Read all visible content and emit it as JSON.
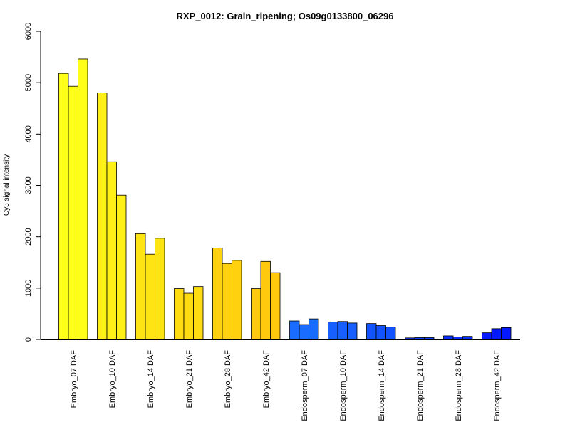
{
  "chart_data": {
    "type": "bar",
    "title": "RXP_0012: Grain_ripening; Os09g0133800_06296",
    "xlabel": "",
    "ylabel": "Cy3 signal intensity",
    "ylim": [
      0,
      6000
    ],
    "yticks": [
      0,
      1000,
      2000,
      3000,
      4000,
      5000,
      6000
    ],
    "grid": false,
    "categories": [
      "Embryo_07 DAF",
      "Embryo_10 DAF",
      "Embryo_14 DAF",
      "Embryo_21 DAF",
      "Embryo_28 DAF",
      "Embryo_42 DAF",
      "Endosperm_07 DAF",
      "Endosperm_10 DAF",
      "Endosperm_14 DAF",
      "Endosperm_21 DAF",
      "Endosperm_28 DAF",
      "Endosperm_42 DAF"
    ],
    "group_colors": [
      "#FFFF19",
      "#FFF017",
      "#FFE414",
      "#FFDB12",
      "#FFD10F",
      "#FFC90D",
      "#1A6BFF",
      "#1760FF",
      "#1252FF",
      "#0E40FF",
      "#0A2DFF",
      "#0519FF"
    ],
    "replicate_values": [
      [
        5180,
        4930,
        5460
      ],
      [
        4800,
        3460,
        2810
      ],
      [
        2060,
        1660,
        1970
      ],
      [
        990,
        900,
        1030
      ],
      [
        1780,
        1480,
        1540
      ],
      [
        990,
        1520,
        1300
      ],
      [
        360,
        290,
        400
      ],
      [
        340,
        350,
        320
      ],
      [
        310,
        270,
        240
      ],
      [
        30,
        35,
        35
      ],
      [
        70,
        50,
        60
      ],
      [
        130,
        210,
        230
      ]
    ]
  }
}
